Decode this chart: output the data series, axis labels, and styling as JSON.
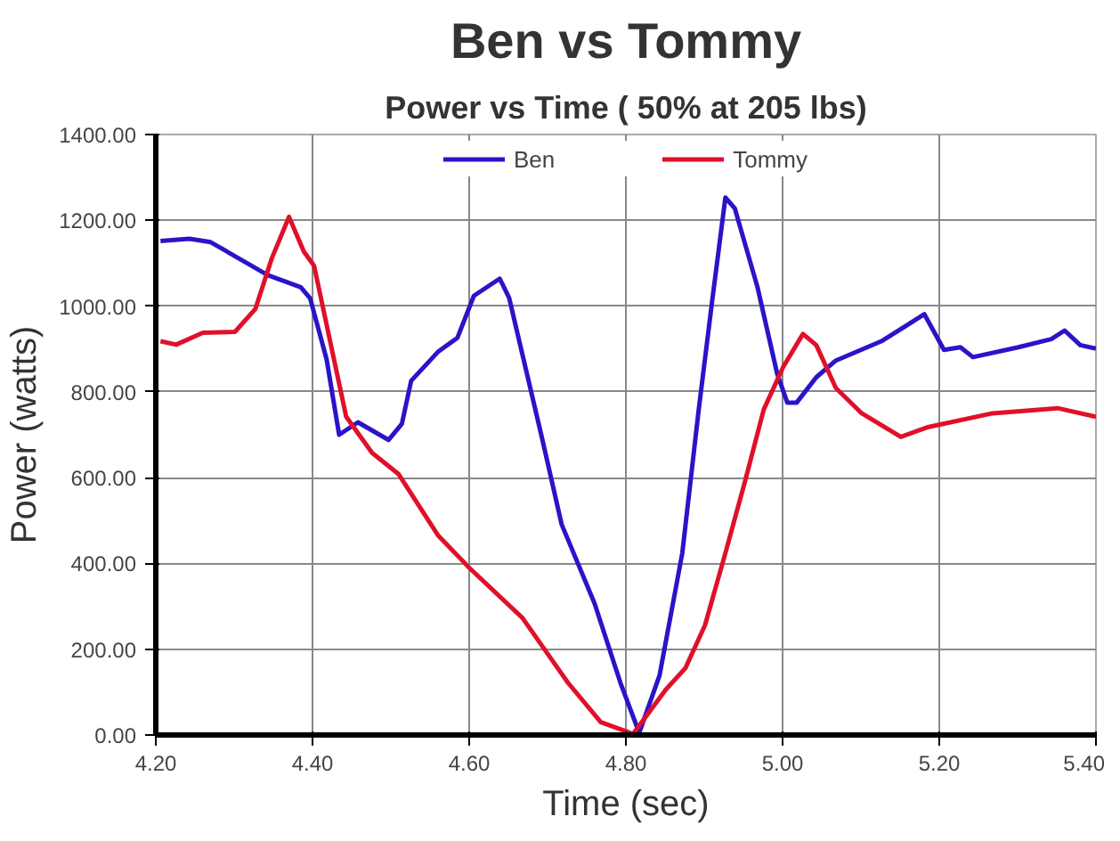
{
  "chart_data": {
    "type": "line",
    "title": "Ben vs Tommy",
    "subtitle": "Power vs Time ( 50% at 205 lbs)",
    "xlabel": "Time (sec)",
    "ylabel": "Power (watts)",
    "series": [
      {
        "name": "Ben",
        "color": "#2a14c8",
        "x": [
          4.206,
          4.243,
          4.27,
          4.31,
          4.343,
          4.385,
          4.397,
          4.418,
          4.434,
          4.458,
          4.497,
          4.514,
          4.526,
          4.56,
          4.585,
          4.606,
          4.639,
          4.651,
          4.693,
          4.718,
          4.76,
          4.793,
          4.817,
          4.843,
          4.872,
          4.893,
          4.91,
          4.927,
          4.939,
          4.968,
          4.993,
          5.006,
          5.018,
          5.043,
          5.068,
          5.126,
          5.181,
          5.206,
          5.227,
          5.243,
          5.301,
          5.343,
          5.36,
          5.38,
          5.4
        ],
        "values": [
          1152,
          1157,
          1149,
          1107,
          1072,
          1044,
          1018,
          876,
          700,
          729,
          688,
          725,
          826,
          893,
          926,
          1024,
          1064,
          1019,
          692,
          491,
          307,
          122,
          5,
          139,
          424,
          759,
          1010,
          1253,
          1228,
          1044,
          843,
          775,
          775,
          834,
          873,
          918,
          981,
          898,
          904,
          881,
          904,
          923,
          943,
          909,
          901
        ]
      },
      {
        "name": "Tommy",
        "color": "#e0102a",
        "x": [
          4.206,
          4.226,
          4.26,
          4.301,
          4.327,
          4.348,
          4.37,
          4.389,
          4.402,
          4.443,
          4.476,
          4.51,
          4.56,
          4.6,
          4.668,
          4.726,
          4.768,
          4.801,
          4.809,
          4.851,
          4.876,
          4.901,
          4.927,
          4.952,
          4.976,
          5.001,
          5.026,
          5.043,
          5.068,
          5.101,
          5.151,
          5.184,
          5.268,
          5.351,
          5.4
        ],
        "values": [
          918,
          910,
          938,
          940,
          993,
          1111,
          1208,
          1127,
          1094,
          742,
          658,
          608,
          466,
          390,
          273,
          122,
          30,
          8,
          2,
          106,
          156,
          256,
          424,
          591,
          759,
          859,
          935,
          909,
          809,
          750,
          695,
          717,
          750,
          762,
          742
        ]
      }
    ],
    "xlim": [
      4.2,
      5.4
    ],
    "xticks": [
      {
        "value": 4.2,
        "label": "4.20"
      },
      {
        "value": 4.4,
        "label": "4.40"
      },
      {
        "value": 4.6,
        "label": "4.60"
      },
      {
        "value": 4.8,
        "label": "4.80"
      },
      {
        "value": 5.0,
        "label": "5.00"
      },
      {
        "value": 5.2,
        "label": "5.20"
      },
      {
        "value": 5.4,
        "label": "5.40"
      }
    ],
    "ylim": [
      0,
      1400
    ],
    "yticks": [
      {
        "value": 0,
        "label": "0.00"
      },
      {
        "value": 200,
        "label": "200.00"
      },
      {
        "value": 400,
        "label": "400.00"
      },
      {
        "value": 600,
        "label": "600.00"
      },
      {
        "value": 800,
        "label": "800.00"
      },
      {
        "value": 1000,
        "label": "1000.00"
      },
      {
        "value": 1200,
        "label": "1200.00"
      },
      {
        "value": 1400,
        "label": "1400.00"
      }
    ],
    "grid": true,
    "legend": "top",
    "line_style": "solid",
    "marker": "none"
  }
}
